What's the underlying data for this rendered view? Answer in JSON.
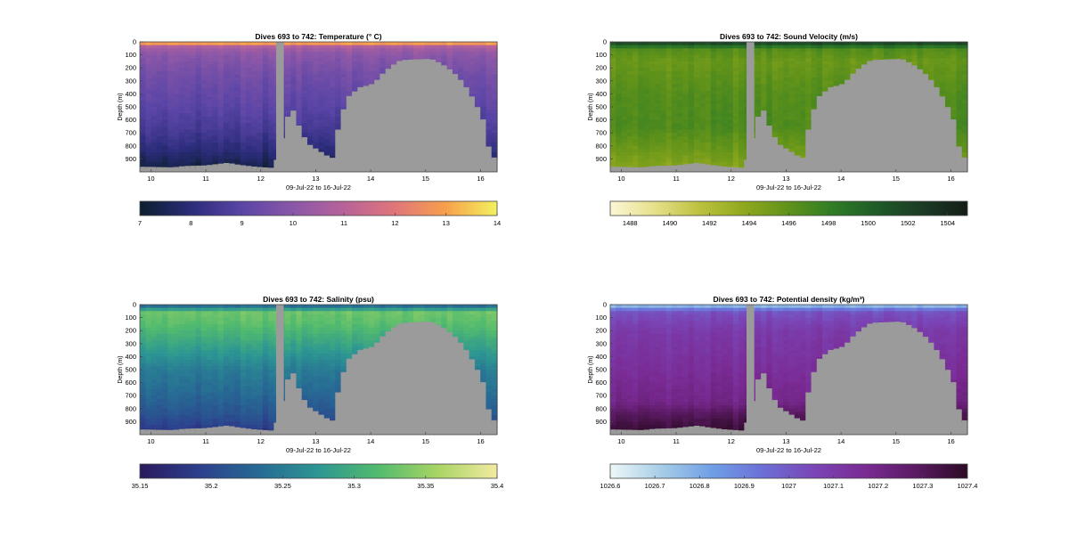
{
  "figure": {
    "date_range_label": "09-Jul-22 to 16-Jul-22",
    "depth_label": "Depth (m)"
  },
  "chart_data": [
    {
      "type": "heatmap",
      "title": "Dives 693 to 742: Temperature (° C)",
      "xlabel": "09-Jul-22 to 16-Jul-22",
      "ylabel": "Depth (m)",
      "xlim": [
        9.8,
        16.3
      ],
      "ylim": [
        1000,
        0
      ],
      "x_ticks": [
        10,
        11,
        12,
        13,
        14,
        15,
        16
      ],
      "y_ticks": [
        0,
        100,
        200,
        300,
        400,
        500,
        600,
        700,
        800,
        900
      ],
      "colorbar": {
        "min": 7,
        "max": 14,
        "ticks": [
          7,
          8,
          9,
          10,
          11,
          12,
          13,
          14
        ],
        "colors": [
          "#0c1f2e",
          "#2b2c7a",
          "#5a45a6",
          "#8a57a8",
          "#b8629a",
          "#e0767a",
          "#f7a04c",
          "#f2f25e"
        ]
      },
      "depth_profile": [
        [
          0,
          14
        ],
        [
          15,
          12.6
        ],
        [
          40,
          10.6
        ],
        [
          100,
          10.0
        ],
        [
          250,
          9.5
        ],
        [
          500,
          9.0
        ],
        [
          700,
          8.5
        ],
        [
          850,
          7.9
        ],
        [
          950,
          7.4
        ],
        [
          1000,
          7.2
        ]
      ]
    },
    {
      "type": "heatmap",
      "title": "Dives 693 to 742: Sound Velocity (m/s)",
      "xlabel": "09-Jul-22 to 16-Jul-22",
      "ylabel": "Depth (m)",
      "xlim": [
        9.8,
        16.3
      ],
      "ylim": [
        1000,
        0
      ],
      "x_ticks": [
        10,
        11,
        12,
        13,
        14,
        15,
        16
      ],
      "y_ticks": [
        0,
        100,
        200,
        300,
        400,
        500,
        600,
        700,
        800,
        900
      ],
      "colorbar": {
        "min": 1487,
        "max": 1505,
        "ticks": [
          1488,
          1490,
          1492,
          1494,
          1496,
          1498,
          1500,
          1502,
          1504
        ],
        "colors": [
          "#fbf7d6",
          "#e6e08a",
          "#bcc13e",
          "#8fa81d",
          "#5f921a",
          "#2e7c26",
          "#1f5a28",
          "#1c3a24",
          "#141d16"
        ]
      },
      "depth_profile": [
        [
          0,
          1503
        ],
        [
          20,
          1500.5
        ],
        [
          60,
          1496.5
        ],
        [
          150,
          1495.5
        ],
        [
          400,
          1496.5
        ],
        [
          650,
          1496.8
        ],
        [
          800,
          1495.6
        ],
        [
          950,
          1494.3
        ],
        [
          1000,
          1494
        ]
      ]
    },
    {
      "type": "heatmap",
      "title": "Dives 693 to 742: Salinity (psu)",
      "xlabel": "09-Jul-22 to 16-Jul-22",
      "ylabel": "Depth (m)",
      "xlim": [
        9.8,
        16.3
      ],
      "ylim": [
        1000,
        0
      ],
      "x_ticks": [
        10,
        11,
        12,
        13,
        14,
        15,
        16
      ],
      "y_ticks": [
        0,
        100,
        200,
        300,
        400,
        500,
        600,
        700,
        800,
        900
      ],
      "colorbar": {
        "min": 35.15,
        "max": 35.4,
        "ticks": [
          35.15,
          35.2,
          35.25,
          35.3,
          35.35,
          35.4
        ],
        "colors": [
          "#2a1a5e",
          "#2d3f8c",
          "#276a94",
          "#2d9693",
          "#52bb6e",
          "#a8d464",
          "#f2eaa0"
        ]
      },
      "depth_profile": [
        [
          0,
          35.22
        ],
        [
          20,
          35.25
        ],
        [
          60,
          35.33
        ],
        [
          150,
          35.32
        ],
        [
          300,
          35.29
        ],
        [
          500,
          35.25
        ],
        [
          700,
          35.23
        ],
        [
          850,
          35.21
        ],
        [
          950,
          35.19
        ],
        [
          1000,
          35.17
        ]
      ]
    },
    {
      "type": "heatmap",
      "title": "Dives 693 to 742: Potential density (kg/m³)",
      "xlabel": "09-Jul-22 to 16-Jul-22",
      "ylabel": "Depth (m)",
      "xlim": [
        9.8,
        16.3
      ],
      "ylim": [
        1000,
        0
      ],
      "x_ticks": [
        10,
        11,
        12,
        13,
        14,
        15,
        16
      ],
      "y_ticks": [
        0,
        100,
        200,
        300,
        400,
        500,
        600,
        700,
        800,
        900
      ],
      "colorbar": {
        "min": 1026.6,
        "max": 1027.4,
        "ticks": [
          1026.6,
          1026.7,
          1026.8,
          1026.9,
          1027,
          1027.1,
          1027.2,
          1027.3,
          1027.4
        ],
        "colors": [
          "#eef7f8",
          "#a6cde7",
          "#6f9ee6",
          "#6c6fd6",
          "#7a45b6",
          "#7a2a93",
          "#5a1a62",
          "#2c0a25"
        ]
      },
      "depth_profile": [
        [
          0,
          1026.65
        ],
        [
          20,
          1026.85
        ],
        [
          60,
          1027.02
        ],
        [
          200,
          1027.1
        ],
        [
          500,
          1027.15
        ],
        [
          750,
          1027.2
        ],
        [
          850,
          1027.3
        ],
        [
          950,
          1027.36
        ],
        [
          1000,
          1027.38
        ]
      ]
    }
  ]
}
